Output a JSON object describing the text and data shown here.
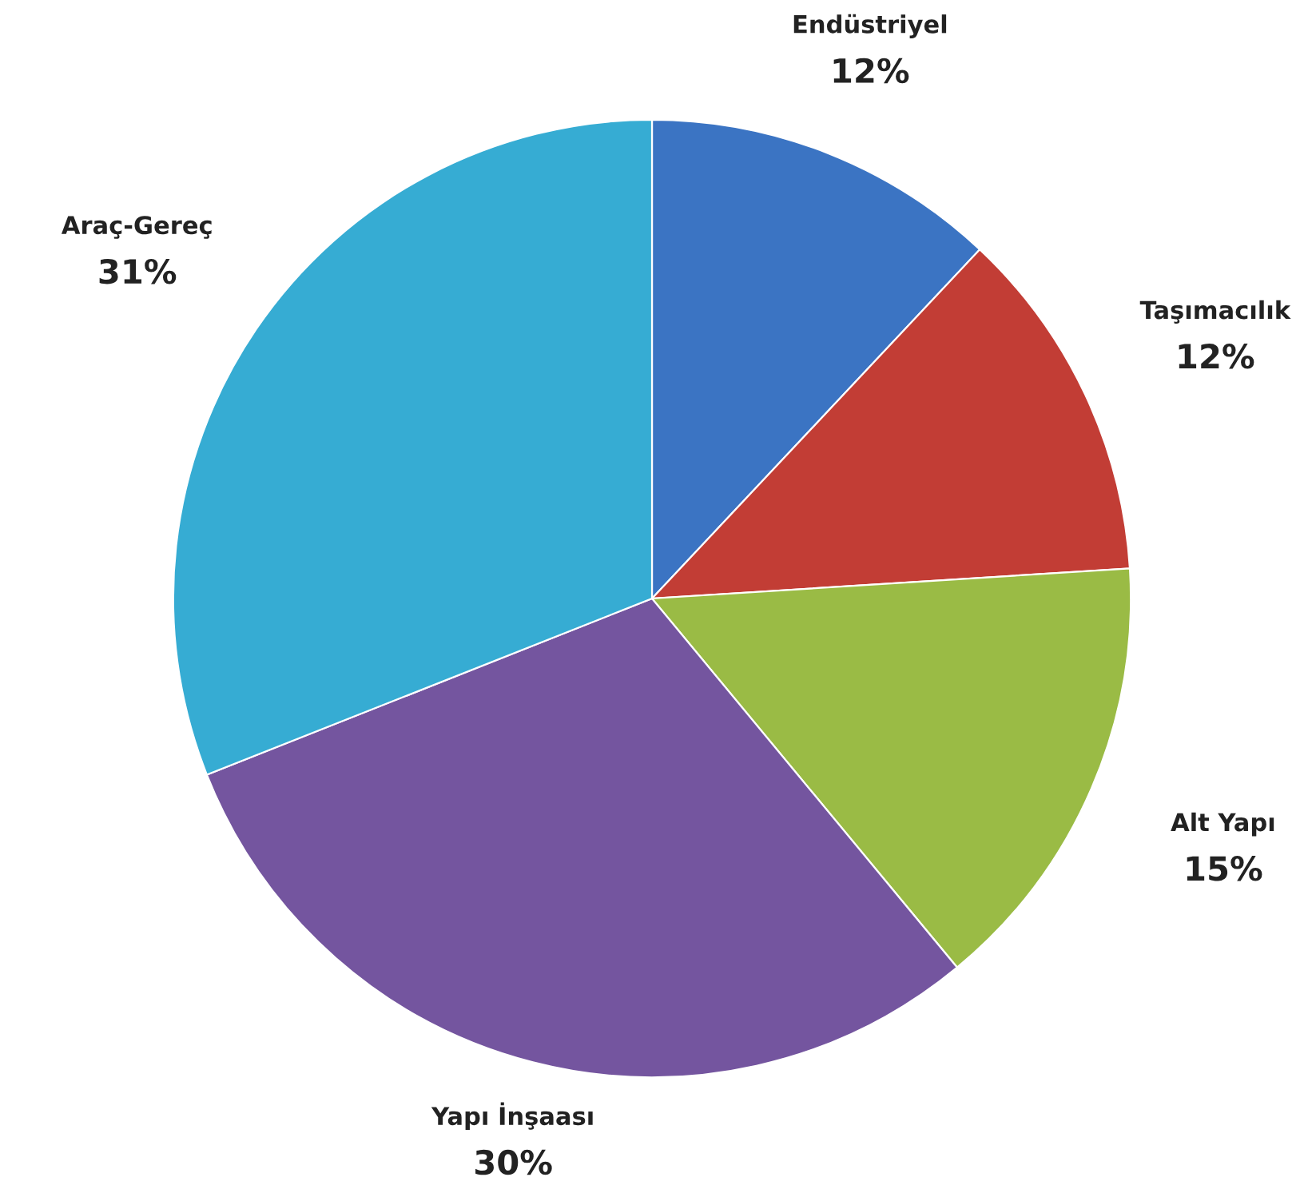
{
  "chart_data": {
    "type": "pie",
    "categories": [
      "Endüstriyel",
      "Taşımacılık",
      "Alt Yapı",
      "Yapı İnşaası",
      "Araç-Gereç"
    ],
    "values": [
      12,
      12,
      15,
      30,
      31
    ],
    "colors": [
      "#3b74c3",
      "#c23d35",
      "#9abb45",
      "#74559f",
      "#36acd3"
    ],
    "value_labels": [
      "12%",
      "12%",
      "15%",
      "30%",
      "31%"
    ]
  }
}
